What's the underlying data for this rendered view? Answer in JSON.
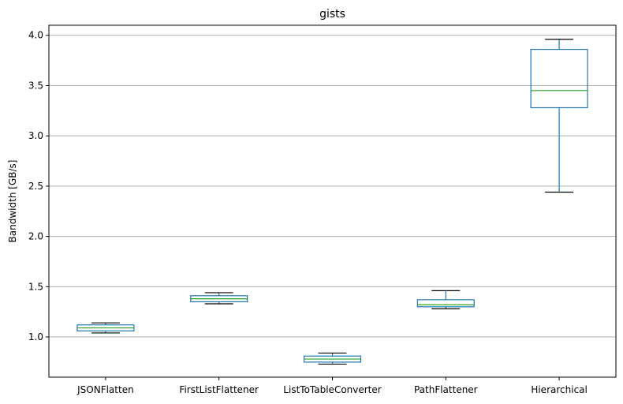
{
  "chart_data": {
    "type": "box",
    "title": "gists",
    "xlabel": "",
    "ylabel": "Bandwidth [GB/s]",
    "ylim": [
      0.6,
      4.1
    ],
    "yticks": [
      "1.0",
      "1.5",
      "2.0",
      "2.5",
      "3.0",
      "3.5",
      "4.0"
    ],
    "grid": "horizontal",
    "colors": {
      "box": "#1f77b4",
      "median": "#2ca02c",
      "whisker_cap": "#000000",
      "grid": "#b0b0b0"
    },
    "categories": [
      "JSONFlatten",
      "FirstListFlattener",
      "ListToTableConverter",
      "PathFlattener",
      "Hierarchical"
    ],
    "boxes": [
      {
        "name": "JSONFlatten",
        "min": 1.04,
        "q1": 1.06,
        "median": 1.09,
        "q3": 1.12,
        "max": 1.14
      },
      {
        "name": "FirstListFlattener",
        "min": 1.33,
        "q1": 1.35,
        "median": 1.38,
        "q3": 1.41,
        "max": 1.44
      },
      {
        "name": "ListToTableConverter",
        "min": 0.73,
        "q1": 0.75,
        "median": 0.78,
        "q3": 0.81,
        "max": 0.84
      },
      {
        "name": "PathFlattener",
        "min": 1.28,
        "q1": 1.3,
        "median": 1.32,
        "q3": 1.37,
        "max": 1.46
      },
      {
        "name": "Hierarchical",
        "min": 2.44,
        "q1": 3.28,
        "median": 3.45,
        "q3": 3.86,
        "max": 3.96
      }
    ]
  }
}
